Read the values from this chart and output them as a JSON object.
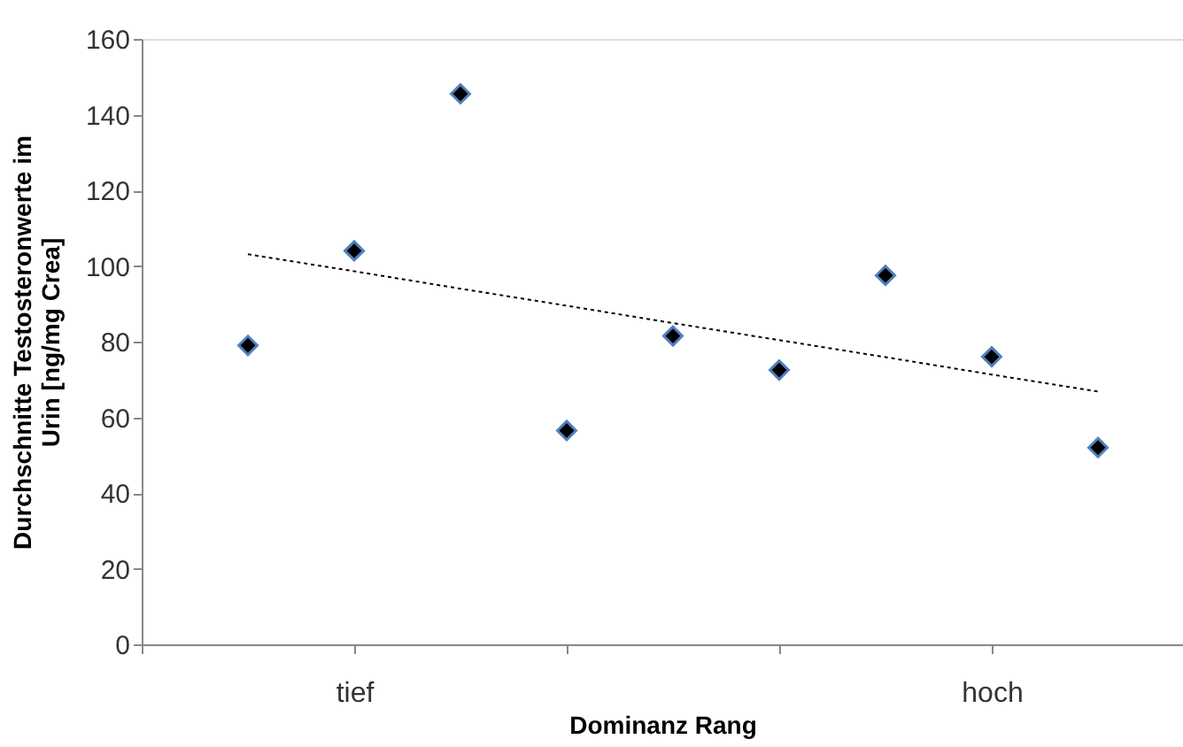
{
  "chart_data": {
    "type": "scatter",
    "xlabel": "Dominanz Rang",
    "ylabel": "Durchschnitte Testosteronwerte im\nUrin [ng/mg Crea]",
    "categories": [
      null,
      "tief",
      null,
      null,
      null,
      null,
      null,
      "hoch",
      null
    ],
    "series": [
      {
        "color": "#000000",
        "marker": "diamond",
        "values": [
          79,
          104,
          145.5,
          56.5,
          81.5,
          72.5,
          97.5,
          76,
          52
        ]
      },
      {
        "type": "line",
        "color": "#000000",
        "line_style": "dotted",
        "marker": "none",
        "values": [
          103.1,
          98.6,
          94.0,
          89.5,
          84.9,
          80.4,
          75.9,
          71.3,
          66.8
        ]
      }
    ],
    "ylim": [
      0,
      160
    ],
    "yticks": [
      0,
      20,
      40,
      60,
      80,
      100,
      120,
      140,
      160
    ],
    "grid": false
  }
}
